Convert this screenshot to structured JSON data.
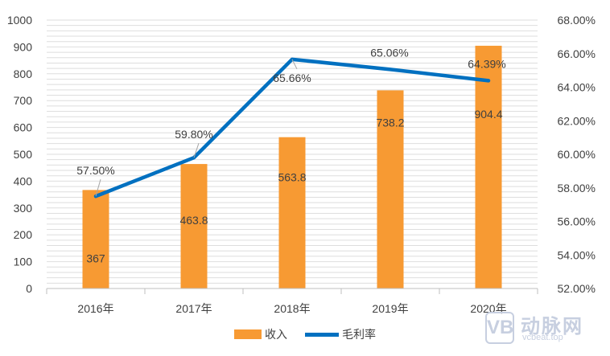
{
  "chart_data": {
    "type": "bar+line",
    "categories": [
      "2016年",
      "2017年",
      "2018年",
      "2019年",
      "2020年"
    ],
    "series": [
      {
        "name": "收入",
        "type": "bar",
        "axis": "left",
        "values": [
          367,
          463.8,
          563.8,
          738.2,
          904.4
        ],
        "labels": [
          "367",
          "463.8",
          "563.8",
          "738.2",
          "904.4"
        ],
        "color": "#f79a33"
      },
      {
        "name": "毛利率",
        "type": "line",
        "axis": "right",
        "values": [
          57.5,
          59.8,
          65.66,
          65.06,
          64.39
        ],
        "labels": [
          "57.50%",
          "59.80%",
          "65.66%",
          "65.06%",
          "64.39%"
        ],
        "color": "#0070c0"
      }
    ],
    "y_left": {
      "ylim": [
        0,
        1000
      ],
      "ticks": [
        "0",
        "100",
        "200",
        "300",
        "400",
        "500",
        "600",
        "700",
        "800",
        "900",
        "1000"
      ]
    },
    "y_right": {
      "ylim": [
        52,
        68
      ],
      "ticks": [
        "52.00%",
        "54.00%",
        "56.00%",
        "58.00%",
        "60.00%",
        "62.00%",
        "64.00%",
        "66.00%",
        "68.00%"
      ]
    },
    "grid": true,
    "legend": "bottom"
  },
  "watermark": {
    "logo": "VB",
    "name": "动脉网",
    "site": "vcbeat.top"
  }
}
